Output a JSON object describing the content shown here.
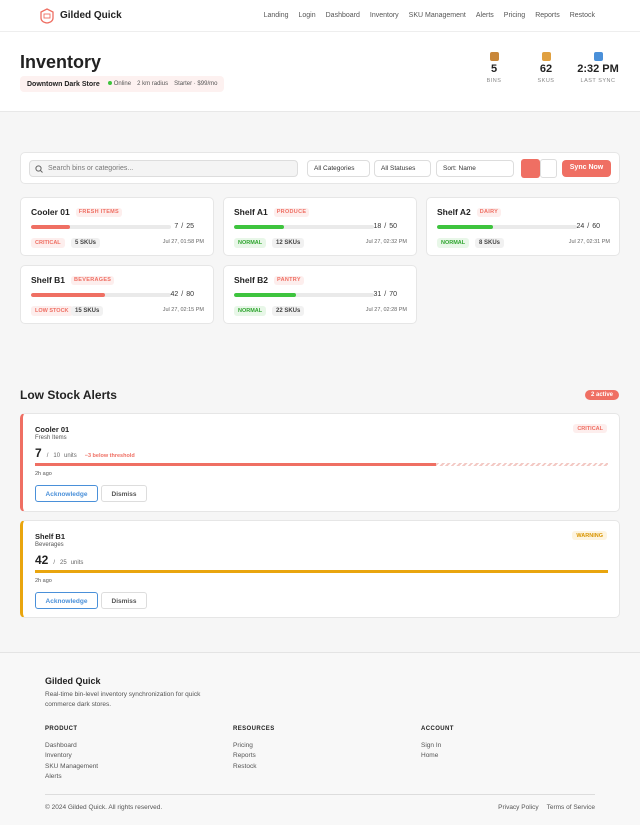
{
  "nav": {
    "brand": "Gilded Quick",
    "links": [
      "Landing",
      "Login",
      "Dashboard",
      "Inventory",
      "SKU Management",
      "Alerts",
      "Pricing",
      "Reports",
      "Restock"
    ]
  },
  "header": {
    "title": "Inventory",
    "store": "Downtown Dark Store",
    "status": "Online",
    "radius": "2 km radius",
    "plan": "Starter · $99/mo",
    "stats": [
      {
        "value": 5,
        "label": "BINS"
      },
      {
        "value": 62,
        "label": "SKUS"
      },
      {
        "value": "2:32 PM",
        "label": "LAST SYNC"
      }
    ]
  },
  "toolbar": {
    "search_placeholder": "Search bins or categories...",
    "filters": [
      "All Categories",
      "All Statuses",
      "Sort: Name"
    ],
    "sync": "Sync Now"
  },
  "bins": [
    {
      "name": "Cooler 01",
      "category": "FRESH ITEMS",
      "stock": 7,
      "capacity": 25,
      "status": "CRITICAL",
      "skus": "5 SKUs",
      "updated": "Jul 27, 01:58 PM",
      "color": "#ef6f63"
    },
    {
      "name": "Shelf A1",
      "category": "PRODUCE",
      "stock": 18,
      "capacity": 50,
      "status": "NORMAL",
      "skus": "12 SKUs",
      "updated": "Jul 27, 02:32 PM",
      "color": "#3ec43e"
    },
    {
      "name": "Shelf A2",
      "category": "DAIRY",
      "stock": 24,
      "capacity": 60,
      "status": "NORMAL",
      "skus": "8 SKUs",
      "updated": "Jul 27, 02:31 PM",
      "color": "#3ec43e"
    },
    {
      "name": "Shelf B1",
      "category": "BEVERAGES",
      "stock": 42,
      "capacity": 80,
      "status": "LOW STOCK",
      "skus": "15 SKUs",
      "updated": "Jul 27, 02:15 PM",
      "color": "#ef6f63"
    },
    {
      "name": "Shelf B2",
      "category": "PANTRY",
      "stock": 31,
      "capacity": 70,
      "status": "NORMAL",
      "skus": "22 SKUs",
      "updated": "Jul 27, 02:28 PM",
      "color": "#3ec43e"
    }
  ],
  "alerts": {
    "title": "Low Stock Alerts",
    "badge": "2 active",
    "items": [
      {
        "bin": "Cooler 01",
        "category": "Fresh Items",
        "level": "CRITICAL",
        "stock": 7,
        "capacity": 10,
        "unit": "units",
        "note": "−3 below threshold",
        "time": "2h ago",
        "actions": [
          "Acknowledge",
          "Dismiss"
        ],
        "color": "#ef6f63"
      },
      {
        "bin": "Shelf B1",
        "category": "Beverages",
        "level": "WARNING",
        "stock": 42,
        "capacity": 25,
        "unit": "units",
        "time": "2h ago",
        "actions": [
          "Acknowledge",
          "Dismiss"
        ],
        "color": "#e9a50e"
      }
    ]
  },
  "footer": {
    "brand": "Gilded Quick",
    "tagline": "Real-time bin-level inventory synchronization for quick commerce dark stores.",
    "columns": [
      {
        "title": "PRODUCT",
        "links": [
          "Dashboard",
          "Inventory",
          "SKU Management",
          "Alerts"
        ]
      },
      {
        "title": "RESOURCES",
        "links": [
          "Pricing",
          "Reports",
          "Restock"
        ]
      },
      {
        "title": "ACCOUNT",
        "links": [
          "Sign In",
          "Home"
        ]
      }
    ],
    "copyright": "© 2024 Gilded Quick. All rights reserved.",
    "legal": [
      "Privacy Policy",
      "Terms of Service"
    ]
  }
}
